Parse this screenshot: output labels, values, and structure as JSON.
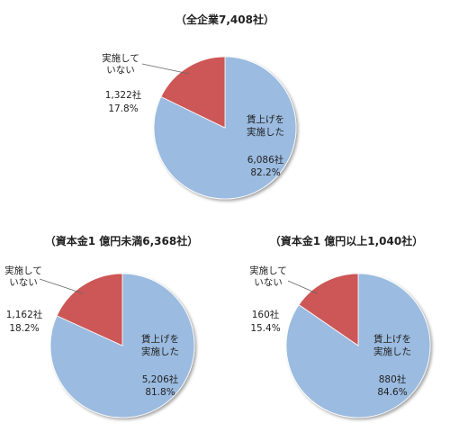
{
  "chart_data": [
    {
      "type": "pie",
      "title": "（全企業7,408社）",
      "slices": [
        {
          "label": [
            "賃上げを",
            "実施した"
          ],
          "count": "6,086社",
          "percent": "82.2%",
          "value": 82.2,
          "color": "#9bbbe0"
        },
        {
          "label": [
            "実施して",
            "いない"
          ],
          "count": "1,322社",
          "percent": "17.8%",
          "value": 17.8,
          "color": "#cd5757"
        }
      ]
    },
    {
      "type": "pie",
      "title": "（資本金1 億円未満6,368社）",
      "slices": [
        {
          "label": [
            "賃上げを",
            "実施した"
          ],
          "count": "5,206社",
          "percent": "81.8%",
          "value": 81.8,
          "color": "#9bbbe0"
        },
        {
          "label": [
            "実施して",
            "いない"
          ],
          "count": "1,162社",
          "percent": "18.2%",
          "value": 18.2,
          "color": "#cd5757"
        }
      ]
    },
    {
      "type": "pie",
      "title": "（資本金1 億円以上1,040社）",
      "slices": [
        {
          "label": [
            "賃上げを",
            "実施した"
          ],
          "count": "880社",
          "percent": "84.6%",
          "value": 84.6,
          "color": "#9bbbe0"
        },
        {
          "label": [
            "実施して",
            "いない"
          ],
          "count": "160社",
          "percent": "15.4%",
          "value": 15.4,
          "color": "#cd5757"
        }
      ]
    }
  ]
}
